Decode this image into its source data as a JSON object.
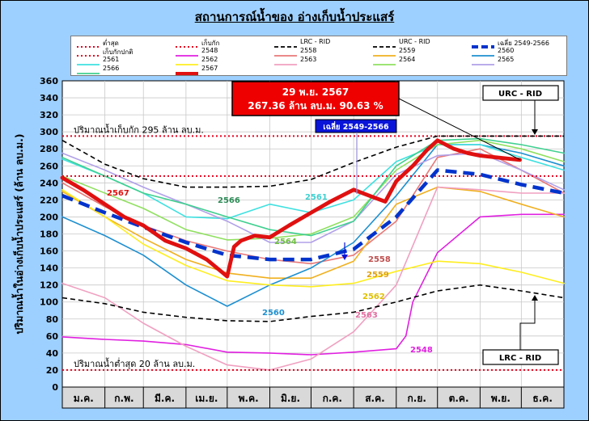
{
  "chart_data": {
    "type": "line",
    "title": "สถานการณ์น้ำของ อ่างเก็บน้ำประแสร์",
    "ylabel": "ปริมาณน้ำในอ่างเก็บน้ำประแสร์ (ล้าน ลบ.ม.)",
    "ylim": [
      0,
      360
    ],
    "yticks": [
      0,
      20,
      40,
      60,
      80,
      100,
      120,
      140,
      160,
      180,
      200,
      220,
      240,
      260,
      280,
      300,
      320,
      340,
      360
    ],
    "grid": true,
    "legend": "top",
    "categories": [
      "ม.ค.",
      "ก.พ.",
      "มี.ค.",
      "เม.ย.",
      "พ.ค.",
      "มิ.ย.",
      "ก.ค.",
      "ส.ค.",
      "ก.ย.",
      "ต.ค.",
      "พ.ย.",
      "ธ.ค."
    ],
    "x_unit": "day of year",
    "series": [
      {
        "name": "ต่ำสุด",
        "color": "#e8001c",
        "style": "dotted",
        "x": [
          0,
          365
        ],
        "values": [
          20,
          20
        ]
      },
      {
        "name": "เก็บกัก",
        "color": "#e8001c",
        "style": "dotted",
        "x": [
          0,
          365
        ],
        "values": [
          295,
          295
        ]
      },
      {
        "name": "LRC - RID",
        "color": "#000000",
        "style": "dashed",
        "x": [
          0,
          31,
          59,
          90,
          120,
          151,
          181,
          212,
          243,
          273,
          304,
          334,
          365
        ],
        "values": [
          105,
          98,
          88,
          82,
          78,
          77,
          83,
          88,
          100,
          113,
          120,
          113,
          105
        ]
      },
      {
        "name": "URC - RID",
        "color": "#000000",
        "style": "dashed",
        "x": [
          0,
          31,
          59,
          90,
          120,
          151,
          181,
          212,
          243,
          273,
          304,
          334,
          365
        ],
        "values": [
          290,
          262,
          245,
          235,
          235,
          236,
          244,
          264,
          282,
          295,
          295,
          295,
          295
        ]
      },
      {
        "name": "เฉลี่ย 2549-2566",
        "color": "#0033cc",
        "style": "thickdash",
        "x": [
          0,
          31,
          59,
          90,
          120,
          151,
          181,
          212,
          243,
          273,
          304,
          334,
          365
        ],
        "values": [
          225,
          205,
          188,
          170,
          155,
          150,
          150,
          162,
          200,
          255,
          250,
          238,
          228
        ]
      },
      {
        "name": "เก็บกักปกติ",
        "color": "#e8001c",
        "style": "dotted",
        "x": [
          0,
          365
        ],
        "values": [
          248,
          248
        ]
      },
      {
        "name": "2548",
        "color": "#e020e0",
        "x": [
          0,
          31,
          59,
          90,
          120,
          151,
          181,
          212,
          243,
          250,
          255,
          273,
          304,
          334,
          365
        ],
        "values": [
          59,
          56,
          54,
          50,
          41,
          40,
          38,
          41,
          45,
          60,
          100,
          158,
          200,
          203,
          203
        ]
      },
      {
        "name": "2558",
        "color": "#e87878",
        "x": [
          0,
          31,
          59,
          90,
          120,
          151,
          181,
          212,
          243,
          273,
          304,
          334,
          365
        ],
        "values": [
          240,
          212,
          190,
          172,
          160,
          150,
          145,
          155,
          195,
          270,
          280,
          255,
          228
        ]
      },
      {
        "name": "2559",
        "color": "#f0b020",
        "x": [
          0,
          31,
          59,
          90,
          120,
          151,
          181,
          212,
          243,
          273,
          304,
          334,
          365
        ],
        "values": [
          230,
          200,
          175,
          150,
          134,
          128,
          128,
          148,
          215,
          235,
          230,
          215,
          200
        ]
      },
      {
        "name": "2560",
        "color": "#1e90d0",
        "x": [
          0,
          31,
          59,
          90,
          120,
          151,
          181,
          212,
          243,
          273,
          304,
          334,
          365
        ],
        "values": [
          200,
          178,
          155,
          120,
          95,
          120,
          140,
          170,
          225,
          285,
          285,
          275,
          260
        ]
      },
      {
        "name": "เก็บกักปกติ",
        "color": "#e8001c",
        "style": "dotted",
        "legend_only": true,
        "x": [],
        "values": []
      },
      {
        "name": "2561",
        "color": "#40e0e0",
        "x": [
          0,
          31,
          59,
          90,
          120,
          151,
          181,
          212,
          243,
          273,
          304,
          334,
          365
        ],
        "values": [
          268,
          248,
          228,
          200,
          198,
          215,
          205,
          220,
          265,
          285,
          285,
          270,
          255
        ]
      },
      {
        "name": "2562",
        "color": "#ffee20",
        "x": [
          0,
          31,
          59,
          90,
          120,
          151,
          181,
          212,
          243,
          273,
          304,
          334,
          365
        ],
        "values": [
          232,
          200,
          168,
          143,
          125,
          120,
          118,
          122,
          136,
          148,
          145,
          135,
          122
        ]
      },
      {
        "name": "2563",
        "color": "#f0a0c0",
        "x": [
          0,
          31,
          59,
          90,
          120,
          151,
          181,
          212,
          243,
          273,
          304,
          334,
          365
        ],
        "values": [
          122,
          105,
          75,
          48,
          26,
          20,
          33,
          65,
          120,
          235,
          232,
          228,
          228
        ]
      },
      {
        "name": "2564",
        "color": "#90e060",
        "x": [
          0,
          31,
          59,
          90,
          120,
          151,
          181,
          212,
          243,
          273,
          304,
          334,
          365
        ],
        "values": [
          248,
          228,
          210,
          185,
          173,
          175,
          180,
          200,
          255,
          285,
          290,
          280,
          265
        ]
      },
      {
        "name": "2565",
        "color": "#b0a0e8",
        "x": [
          0,
          31,
          59,
          90,
          120,
          151,
          181,
          212,
          243,
          273,
          304,
          334,
          365
        ],
        "values": [
          275,
          255,
          235,
          215,
          195,
          170,
          170,
          195,
          250,
          272,
          275,
          255,
          232
        ]
      },
      {
        "name": "2566",
        "color": "#40d090",
        "x": [
          0,
          31,
          59,
          90,
          120,
          151,
          181,
          212,
          243,
          273,
          304,
          334,
          365
        ],
        "values": [
          270,
          248,
          228,
          215,
          200,
          185,
          178,
          195,
          260,
          290,
          292,
          285,
          275
        ]
      },
      {
        "name": "2567",
        "color": "#e01010",
        "style": "thick",
        "x": [
          0,
          15,
          31,
          45,
          59,
          75,
          90,
          105,
          120,
          125,
          130,
          140,
          151,
          165,
          181,
          195,
          212,
          225,
          235,
          243,
          255,
          265,
          273,
          285,
          295,
          304,
          333
        ],
        "values": [
          246,
          232,
          215,
          200,
          190,
          172,
          163,
          150,
          130,
          165,
          172,
          178,
          176,
          190,
          205,
          218,
          232,
          224,
          218,
          242,
          260,
          278,
          290,
          280,
          275,
          272,
          267
        ]
      }
    ],
    "labels": {
      "y2567": "2567",
      "y2566": "2566",
      "y2561": "2561",
      "y2564": "2564",
      "y2560": "2560",
      "y2558": "2558",
      "y2559": "2559",
      "y2562": "2562",
      "y2563": "2563",
      "y2548": "2548"
    },
    "annotations": {
      "callout_date": "29 พ.ย. 2567",
      "callout_value": "267.36 ล้าน ลบ.ม. 90.63 %",
      "avg_box": "เฉลี่ย 2549-2566",
      "urc_box": "URC - RID",
      "lrc_box": "LRC - RID",
      "full_label": "ปริมาณน้ำเก็บกัก 295 ล้าน ลบ.ม.",
      "min_label": "ปริมาณน้ำต่ำสุด 20 ล้าน ลบ.ม."
    }
  }
}
